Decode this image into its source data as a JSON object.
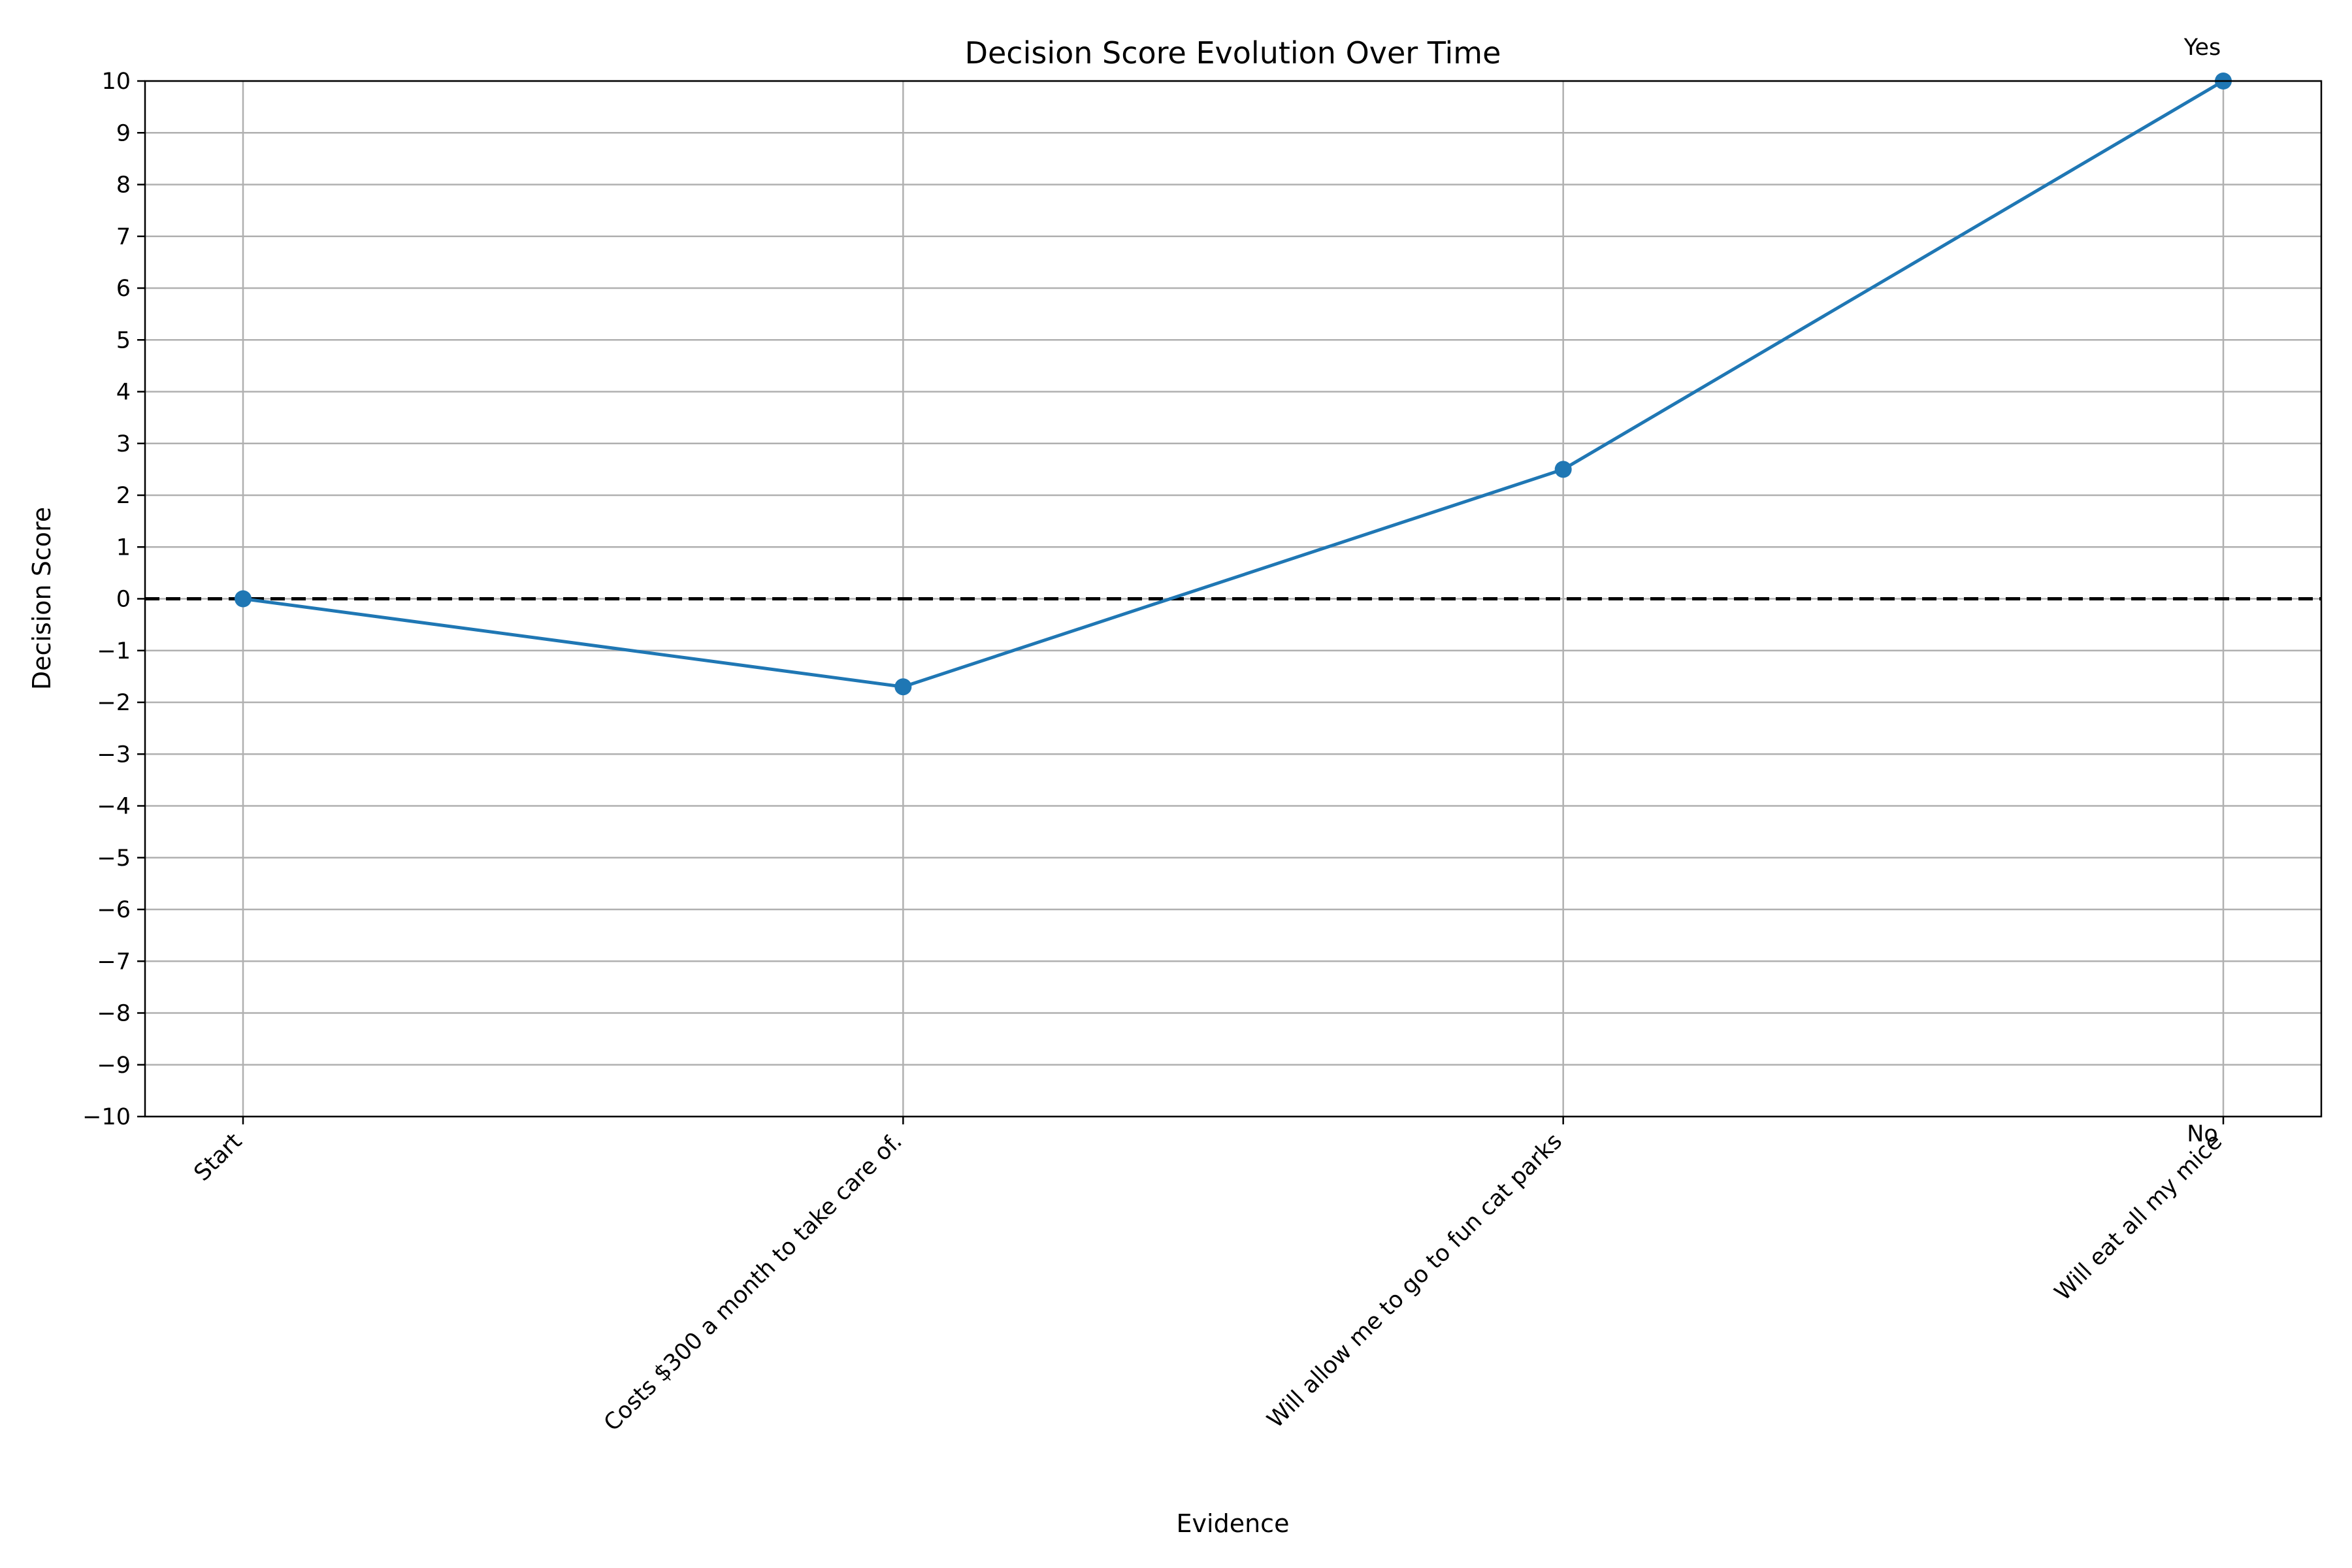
{
  "chart_data": {
    "type": "line",
    "title": "Decision Score Evolution Over Time",
    "xlabel": "Evidence",
    "ylabel": "Decision Score",
    "categories": [
      "Start",
      "Costs $300 a month to take care of.",
      "Will allow me to go to fun cat parks",
      "Will eat all my mice"
    ],
    "series": [
      {
        "values": [
          0,
          -1.7,
          2.5,
          10
        ],
        "color": "#1f77b4"
      }
    ],
    "ylim": [
      -10,
      10
    ],
    "yticks": [
      -10,
      -9,
      -8,
      -7,
      -6,
      -5,
      -4,
      -3,
      -2,
      -1,
      0,
      1,
      2,
      3,
      4,
      5,
      6,
      7,
      8,
      9,
      10
    ],
    "reference_line": {
      "y": 0,
      "style": "dashed",
      "color": "#000000"
    },
    "threshold_labels": {
      "top": "Yes",
      "bottom": "No"
    },
    "grid": true,
    "legend": "none"
  }
}
